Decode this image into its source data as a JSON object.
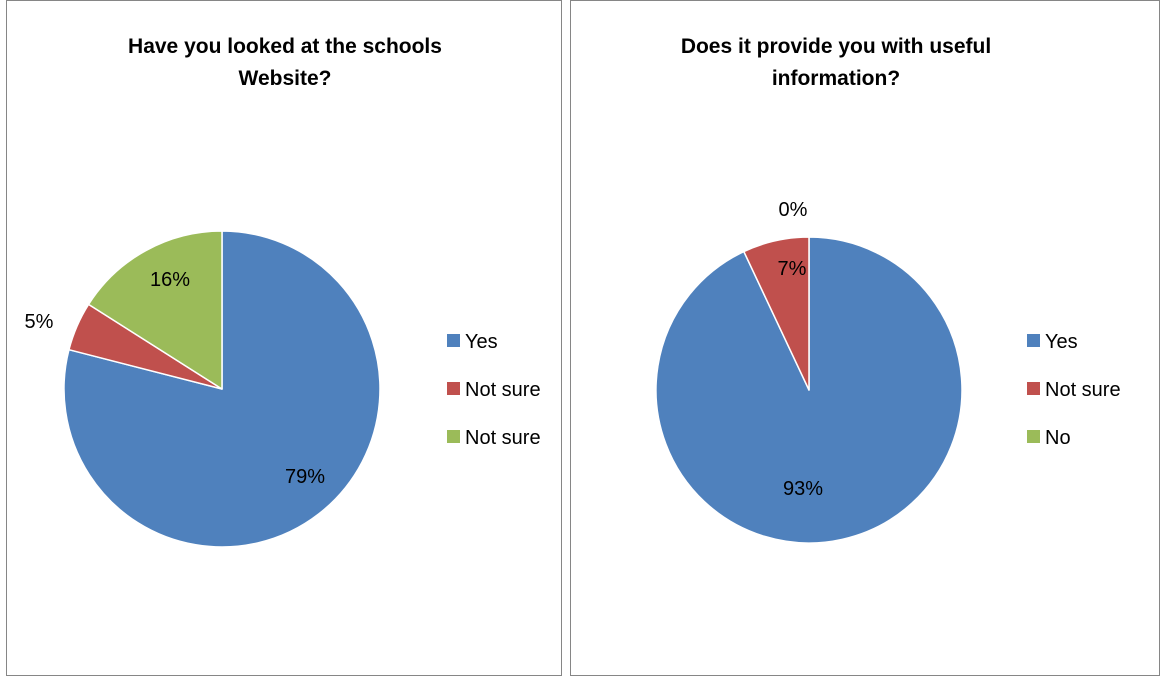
{
  "chart_data": [
    {
      "type": "pie",
      "title": "Have you looked at the schools Website?",
      "title_lines": [
        "Have you looked at the schools",
        "Website?"
      ],
      "categories": [
        "Yes",
        "Not sure",
        "Not sure"
      ],
      "values": [
        79,
        5,
        16
      ],
      "data_labels": [
        "79%",
        "5%",
        "16%"
      ],
      "colors": [
        "#4F81BD",
        "#C0504D",
        "#9BBB59"
      ],
      "legend": [
        "Yes",
        "Not sure",
        "Not sure"
      ],
      "legend_position": "right"
    },
    {
      "type": "pie",
      "title": "Does it provide you with useful information?",
      "title_lines": [
        "Does it provide you with useful",
        "information?"
      ],
      "categories": [
        "Yes",
        "Not sure",
        "No"
      ],
      "values": [
        93,
        7,
        0
      ],
      "data_labels": [
        "93%",
        "7%",
        "0%"
      ],
      "colors": [
        "#4F81BD",
        "#C0504D",
        "#9BBB59"
      ],
      "legend": [
        "Yes",
        "Not sure",
        "No"
      ],
      "legend_position": "right"
    }
  ]
}
